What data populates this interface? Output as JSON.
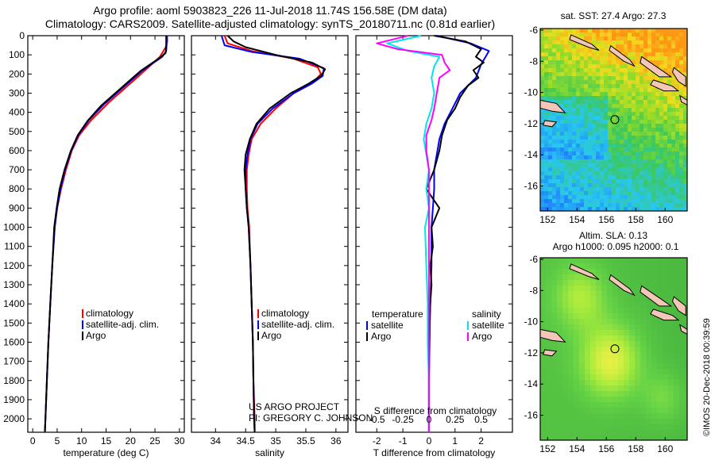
{
  "header": {
    "line1": "Argo profile: aoml 5903823_226 11-Jul-2018 11.74S 156.58E (DM data)",
    "line2": "Climatology: CARS2009. Satellite-adjusted climatology: synTS_20180711.nc (0.81d earlier)"
  },
  "colors": {
    "climatology": "#ff0000",
    "satellite": "#0000ff",
    "argo": "#000000",
    "sat_salinity": "#00e5ee",
    "argo_salinity": "#ff00ff"
  },
  "chart_data": [
    {
      "type": "line",
      "id": "temperature-profile",
      "xlabel": "temperature (deg C)",
      "xlim": [
        -1,
        31
      ],
      "xticks": [
        0,
        5,
        10,
        15,
        20,
        25,
        30
      ],
      "ylim": [
        2070,
        0
      ],
      "yticks": [
        0,
        100,
        200,
        300,
        400,
        500,
        600,
        700,
        800,
        900,
        1000,
        1100,
        1200,
        1300,
        1400,
        1500,
        1600,
        1700,
        1800,
        1900,
        2000
      ],
      "legend": [
        "climatology",
        "satellite-adj. clim.",
        "Argo"
      ],
      "series": [
        {
          "name": "climatology",
          "color": "#ff0000",
          "points": [
            [
              27.5,
              0
            ],
            [
              27.5,
              30
            ],
            [
              27.2,
              60
            ],
            [
              26.0,
              110
            ],
            [
              23.0,
              180
            ],
            [
              19.5,
              260
            ],
            [
              15.5,
              350
            ],
            [
              12.0,
              440
            ],
            [
              9.5,
              520
            ],
            [
              8.0,
              600
            ],
            [
              6.8,
              700
            ],
            [
              5.8,
              800
            ],
            [
              5.0,
              900
            ],
            [
              4.5,
              1000
            ],
            [
              4.0,
              1200
            ],
            [
              3.6,
              1400
            ],
            [
              3.2,
              1600
            ],
            [
              2.9,
              1800
            ],
            [
              2.6,
              2000
            ],
            [
              2.5,
              2070
            ]
          ]
        },
        {
          "name": "satellite-adj. clim.",
          "color": "#0000ff",
          "points": [
            [
              27.4,
              0
            ],
            [
              27.4,
              40
            ],
            [
              27.3,
              80
            ],
            [
              26.5,
              110
            ],
            [
              22.5,
              180
            ],
            [
              18.5,
              270
            ],
            [
              14.5,
              360
            ],
            [
              11.5,
              440
            ],
            [
              9.3,
              520
            ],
            [
              7.9,
              600
            ],
            [
              6.6,
              700
            ],
            [
              5.7,
              800
            ],
            [
              5.0,
              900
            ],
            [
              4.5,
              1000
            ],
            [
              4.0,
              1200
            ],
            [
              3.6,
              1400
            ],
            [
              3.2,
              1600
            ],
            [
              2.9,
              1800
            ],
            [
              2.6,
              2000
            ],
            [
              2.5,
              2070
            ]
          ]
        },
        {
          "name": "Argo",
          "color": "#000000",
          "points": [
            [
              27.3,
              0
            ],
            [
              27.3,
              50
            ],
            [
              27.2,
              90
            ],
            [
              26.0,
              115
            ],
            [
              22.0,
              185
            ],
            [
              18.0,
              275
            ],
            [
              14.0,
              365
            ],
            [
              11.2,
              445
            ],
            [
              9.2,
              520
            ],
            [
              7.8,
              600
            ],
            [
              6.5,
              700
            ],
            [
              5.5,
              800
            ],
            [
              4.9,
              900
            ],
            [
              4.4,
              1000
            ],
            [
              4.0,
              1200
            ],
            [
              3.6,
              1400
            ],
            [
              3.2,
              1600
            ],
            [
              2.9,
              1800
            ],
            [
              2.6,
              2000
            ],
            [
              2.5,
              2070
            ]
          ]
        }
      ]
    },
    {
      "type": "line",
      "id": "salinity-profile",
      "xlabel": "salinity",
      "xlim": [
        33.6,
        36.2
      ],
      "xticks": [
        34,
        34.5,
        35,
        35.5,
        36
      ],
      "ylim": [
        2070,
        0
      ],
      "legend": [
        "climatology",
        "satellite-adj. clim.",
        "Argo"
      ],
      "series": [
        {
          "name": "climatology",
          "color": "#ff0000",
          "points": [
            [
              34.15,
              0
            ],
            [
              34.2,
              40
            ],
            [
              34.6,
              80
            ],
            [
              35.3,
              120
            ],
            [
              35.7,
              165
            ],
            [
              35.75,
              200
            ],
            [
              35.6,
              250
            ],
            [
              35.3,
              300
            ],
            [
              35.0,
              380
            ],
            [
              34.75,
              460
            ],
            [
              34.6,
              540
            ],
            [
              34.55,
              620
            ],
            [
              34.52,
              700
            ],
            [
              34.52,
              800
            ],
            [
              34.53,
              900
            ],
            [
              34.56,
              1000
            ],
            [
              34.58,
              1200
            ],
            [
              34.6,
              1400
            ],
            [
              34.62,
              1600
            ],
            [
              34.63,
              1800
            ],
            [
              34.65,
              2000
            ],
            [
              34.65,
              2070
            ]
          ]
        },
        {
          "name": "satellite-adj. clim.",
          "color": "#0000ff",
          "points": [
            [
              34.1,
              0
            ],
            [
              34.15,
              50
            ],
            [
              34.6,
              85
            ],
            [
              35.4,
              120
            ],
            [
              35.8,
              170
            ],
            [
              35.78,
              210
            ],
            [
              35.6,
              250
            ],
            [
              35.3,
              300
            ],
            [
              34.95,
              380
            ],
            [
              34.7,
              460
            ],
            [
              34.58,
              540
            ],
            [
              34.53,
              620
            ],
            [
              34.5,
              700
            ],
            [
              34.5,
              800
            ],
            [
              34.52,
              900
            ],
            [
              34.55,
              1000
            ],
            [
              34.58,
              1200
            ],
            [
              34.6,
              1400
            ],
            [
              34.62,
              1600
            ],
            [
              34.63,
              1800
            ],
            [
              34.64,
              2000
            ],
            [
              34.65,
              2070
            ]
          ]
        },
        {
          "name": "Argo",
          "color": "#000000",
          "points": [
            [
              34.2,
              0
            ],
            [
              34.3,
              30
            ],
            [
              34.5,
              60
            ],
            [
              35.0,
              100
            ],
            [
              35.6,
              140
            ],
            [
              35.82,
              175
            ],
            [
              35.75,
              210
            ],
            [
              35.55,
              250
            ],
            [
              35.25,
              300
            ],
            [
              34.9,
              380
            ],
            [
              34.68,
              460
            ],
            [
              34.57,
              540
            ],
            [
              34.5,
              620
            ],
            [
              34.48,
              700
            ],
            [
              34.5,
              800
            ],
            [
              34.52,
              900
            ],
            [
              34.55,
              1000
            ],
            [
              34.58,
              1200
            ],
            [
              34.6,
              1400
            ],
            [
              34.62,
              1600
            ],
            [
              34.63,
              1800
            ],
            [
              34.64,
              2000
            ],
            [
              34.65,
              2070
            ]
          ]
        }
      ]
    },
    {
      "type": "line",
      "id": "difference-profile",
      "xlabel": "T difference from climatology",
      "xlabel_top": "S difference from climatology",
      "xlim": [
        -2.8,
        3.2
      ],
      "xticks": [
        -2,
        -1,
        0,
        1,
        2
      ],
      "xticks_top": [
        {
          "v": -0.5,
          "label": "-0.5"
        },
        {
          "v": -0.25,
          "label": "-0.25"
        },
        {
          "v": 0,
          "label": "0"
        },
        {
          "v": 0.25,
          "label": "0.25"
        },
        {
          "v": 0.5,
          "label": "0.5"
        }
      ],
      "ylim": [
        2070,
        0
      ],
      "legend_left_title": "temperature",
      "legend_left": [
        "satellite",
        "Argo"
      ],
      "legend_right_title": "salinity",
      "legend_right": [
        "satellite",
        "Argo"
      ],
      "series": [
        {
          "name": "temperature satellite",
          "color": "#0000ff",
          "points": [
            [
              0.3,
              0
            ],
            [
              1.6,
              40
            ],
            [
              2.3,
              80
            ],
            [
              2.0,
              150
            ],
            [
              1.8,
              220
            ],
            [
              1.2,
              300
            ],
            [
              0.9,
              380
            ],
            [
              0.6,
              460
            ],
            [
              0.4,
              540
            ],
            [
              0.3,
              620
            ],
            [
              0.2,
              700
            ],
            [
              0.2,
              800
            ],
            [
              0.15,
              900
            ],
            [
              0.1,
              1000
            ],
            [
              0.1,
              1200
            ],
            [
              0.05,
              1400
            ],
            [
              0.0,
              1600
            ],
            [
              0.0,
              1800
            ],
            [
              0.0,
              2000
            ],
            [
              0.0,
              2070
            ]
          ]
        },
        {
          "name": "temperature Argo",
          "color": "#000000",
          "points": [
            [
              0.2,
              0
            ],
            [
              1.4,
              30
            ],
            [
              2.0,
              70
            ],
            [
              1.8,
              110
            ],
            [
              2.1,
              140
            ],
            [
              1.7,
              180
            ],
            [
              1.9,
              220
            ],
            [
              1.5,
              260
            ],
            [
              1.2,
              320
            ],
            [
              1.0,
              380
            ],
            [
              0.7,
              440
            ],
            [
              0.5,
              520
            ],
            [
              0.4,
              600
            ],
            [
              0.2,
              700
            ],
            [
              -0.1,
              800
            ],
            [
              0.4,
              900
            ],
            [
              0.1,
              1000
            ],
            [
              0.15,
              1100
            ],
            [
              0.05,
              1200
            ],
            [
              0.1,
              1300
            ],
            [
              0.05,
              1400
            ],
            [
              0.02,
              1600
            ],
            [
              0.0,
              1800
            ],
            [
              0.0,
              2000
            ],
            [
              0.0,
              2070
            ]
          ]
        },
        {
          "name": "salinity satellite",
          "color": "#00e5ee",
          "points": [
            [
              -0.3,
              0
            ],
            [
              -1.6,
              40
            ],
            [
              -0.8,
              80
            ],
            [
              0.4,
              110
            ],
            [
              0.2,
              160
            ],
            [
              0.1,
              220
            ],
            [
              0.2,
              300
            ],
            [
              0.1,
              380
            ],
            [
              -0.1,
              460
            ],
            [
              -0.2,
              540
            ],
            [
              -0.1,
              620
            ],
            [
              0.0,
              700
            ],
            [
              -0.1,
              800
            ],
            [
              0.0,
              900
            ],
            [
              -0.15,
              1000
            ],
            [
              -0.1,
              1200
            ],
            [
              -0.05,
              1400
            ],
            [
              -0.05,
              1600
            ],
            [
              0.0,
              1800
            ],
            [
              0.0,
              2000
            ],
            [
              0.0,
              2070
            ]
          ]
        },
        {
          "name": "salinity Argo",
          "color": "#ff00ff",
          "points": [
            [
              -0.8,
              0
            ],
            [
              -2.0,
              40
            ],
            [
              -1.2,
              70
            ],
            [
              0.5,
              100
            ],
            [
              0.6,
              140
            ],
            [
              0.8,
              180
            ],
            [
              0.4,
              220
            ],
            [
              0.3,
              300
            ],
            [
              0.2,
              380
            ],
            [
              0.1,
              440
            ],
            [
              -0.1,
              520
            ],
            [
              -0.1,
              600
            ],
            [
              0.0,
              700
            ],
            [
              0.0,
              800
            ],
            [
              0.0,
              1000
            ],
            [
              0.0,
              1200
            ],
            [
              0.0,
              1400
            ],
            [
              0.0,
              2000
            ],
            [
              0.0,
              2070
            ]
          ]
        }
      ]
    },
    {
      "type": "heatmap",
      "id": "sst-map",
      "title": "sat. SST: 27.4 Argo: 27.3",
      "xlim": [
        151.5,
        161.5
      ],
      "ylim": [
        -17.6,
        -5.9
      ],
      "xticks": [
        152,
        154,
        156,
        158,
        160
      ],
      "yticks": [
        -6,
        -8,
        -10,
        -12,
        -14,
        -16
      ],
      "argo_position": [
        156.58,
        -11.74
      ]
    },
    {
      "type": "heatmap",
      "id": "sla-map",
      "title": "Altim. SLA: 0.13",
      "subtitle": "Argo h1000: 0.095 h2000: 0.1",
      "xlim": [
        151.5,
        161.5
      ],
      "ylim": [
        -17.6,
        -5.9
      ],
      "xticks": [
        152,
        154,
        156,
        158,
        160
      ],
      "yticks": [
        -6,
        -8,
        -10,
        -12,
        -14,
        -16
      ],
      "argo_position": [
        156.58,
        -11.74
      ]
    }
  ],
  "credits": {
    "project": "US ARGO PROJECT",
    "pi": "PI: GREGORY C. JOHNSON",
    "watermark": "©IMOS 20-Dec-2018 00:39:59"
  }
}
